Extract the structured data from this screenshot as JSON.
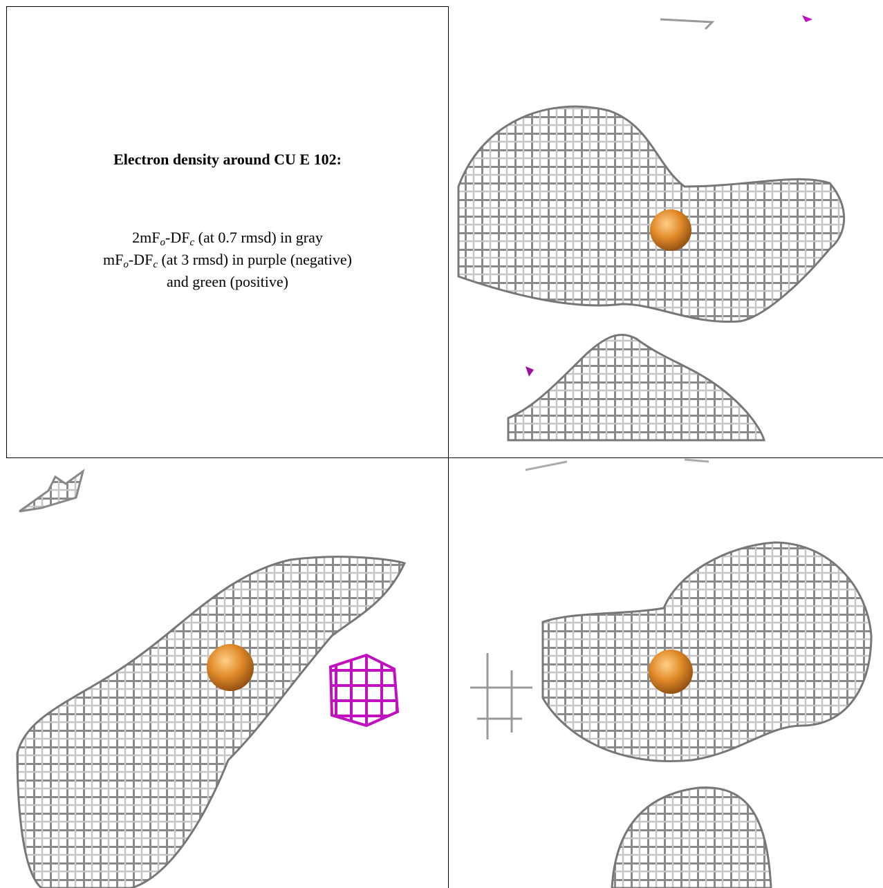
{
  "caption": {
    "title": "Electron density around CU E 102:",
    "lines": [
      [
        "2mF",
        "o",
        "-DF",
        "c",
        " (at 0.7 rmsd) in gray"
      ],
      [
        "mF",
        "o",
        "-DF",
        "c",
        " (at 3 rmsd) in purple (negative)"
      ],
      [
        "and green (positive)"
      ]
    ]
  }
}
